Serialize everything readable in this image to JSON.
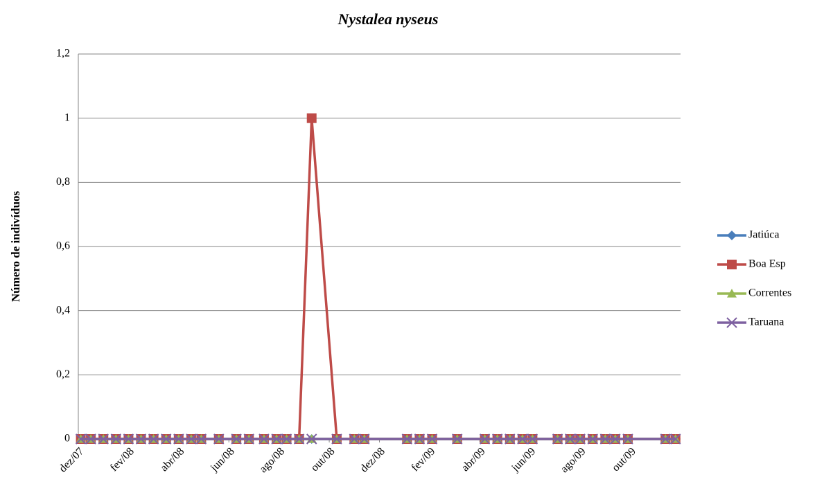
{
  "chart_data": {
    "type": "line",
    "title": "Nystalea nyseus",
    "y_label": "Número de indivíduos",
    "x": [
      0.1,
      0.5,
      1.0,
      1.5,
      2.0,
      2.5,
      3.0,
      3.5,
      4.0,
      4.5,
      4.9,
      5.6,
      6.3,
      6.8,
      7.4,
      7.9,
      8.3,
      8.8,
      9.3,
      10.3,
      11.0,
      11.4,
      13.1,
      13.6,
      14.1,
      15.1,
      16.2,
      16.7,
      17.2,
      17.7,
      18.1,
      19.1,
      19.6,
      20.0,
      20.5,
      21.0,
      21.4,
      21.9,
      23.4,
      23.8
    ],
    "xlim": [
      0,
      24
    ],
    "xticks": [
      {
        "value": 0,
        "label": "dez/07"
      },
      {
        "value": 2,
        "label": "fev/08"
      },
      {
        "value": 4,
        "label": "abr/08"
      },
      {
        "value": 6,
        "label": "jun/08"
      },
      {
        "value": 8,
        "label": "ago/08"
      },
      {
        "value": 10,
        "label": "out/08"
      },
      {
        "value": 12,
        "label": "dez/08"
      },
      {
        "value": 14,
        "label": "fev/09"
      },
      {
        "value": 16,
        "label": "abr/09"
      },
      {
        "value": 18,
        "label": "jun/09"
      },
      {
        "value": 20,
        "label": "ago/09"
      },
      {
        "value": 22,
        "label": "out/09"
      }
    ],
    "ylim": [
      0,
      1.2
    ],
    "yticks": [
      0,
      {
        "value": 0.2,
        "label": "0,2"
      },
      {
        "value": 0.4,
        "label": "0,4"
      },
      {
        "value": 0.6,
        "label": "0,6"
      },
      {
        "value": 0.8,
        "label": "0,8"
      },
      1,
      {
        "value": 1.2,
        "label": "1,2"
      }
    ],
    "grid": true,
    "legend": "right",
    "series": [
      {
        "name": "Jatiúca",
        "color": "#4a7ebb",
        "marker": "diamond",
        "values": [
          0,
          0,
          0,
          0,
          0,
          0,
          0,
          0,
          0,
          0,
          0,
          0,
          0,
          0,
          0,
          0,
          0,
          0,
          0,
          0,
          0,
          0,
          0,
          0,
          0,
          0,
          0,
          0,
          0,
          0,
          0,
          0,
          0,
          0,
          0,
          0,
          0,
          0,
          0,
          0
        ]
      },
      {
        "name": "Boa Esp",
        "color": "#be4b48",
        "marker": "square",
        "values": [
          0,
          0,
          0,
          0,
          0,
          0,
          0,
          0,
          0,
          0,
          0,
          0,
          0,
          0,
          0,
          0,
          0,
          0,
          1,
          0,
          0,
          0,
          0,
          0,
          0,
          0,
          0,
          0,
          0,
          0,
          0,
          0,
          0,
          0,
          0,
          0,
          0,
          0,
          0,
          0
        ]
      },
      {
        "name": "Correntes",
        "color": "#98b954",
        "marker": "triangle",
        "values": [
          0,
          0,
          0,
          0,
          0,
          0,
          0,
          0,
          0,
          0,
          0,
          0,
          0,
          0,
          0,
          0,
          0,
          0,
          0,
          0,
          0,
          0,
          0,
          0,
          0,
          0,
          0,
          0,
          0,
          0,
          0,
          0,
          0,
          0,
          0,
          0,
          0,
          0,
          0,
          0
        ]
      },
      {
        "name": "Taruana",
        "color": "#7d60a0",
        "marker": "x",
        "values": [
          0,
          0,
          0,
          0,
          0,
          0,
          0,
          0,
          0,
          0,
          0,
          0,
          0,
          0,
          0,
          0,
          0,
          0,
          0,
          0,
          0,
          0,
          0,
          0,
          0,
          0,
          0,
          0,
          0,
          0,
          0,
          0,
          0,
          0,
          0,
          0,
          0,
          0,
          0,
          0
        ]
      }
    ]
  }
}
